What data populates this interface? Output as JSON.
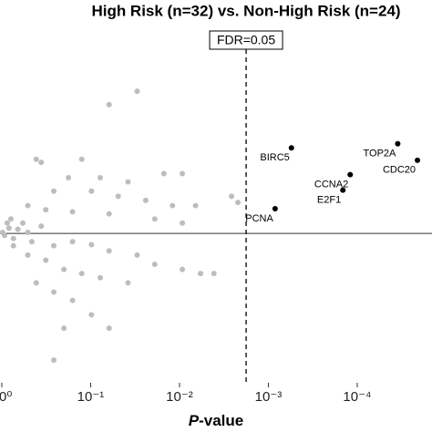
{
  "chart_data": {
    "type": "scatter",
    "title": "High Risk (n=32) vs. Non-High Risk (n=24)",
    "xlabel": "P-value",
    "xscale": "log",
    "xlim": [
      1,
      1.44e-05
    ],
    "ylim": [
      -1.45,
      2
    ],
    "xticks": [
      {
        "value": 1,
        "label": "10⁰"
      },
      {
        "value": 0.1,
        "label": "10⁻¹"
      },
      {
        "value": 0.01,
        "label": "10⁻²"
      },
      {
        "value": 0.001,
        "label": "10⁻³"
      },
      {
        "value": 0.0001,
        "label": "10⁻⁴"
      }
    ],
    "hline": 0,
    "fdr_line": {
      "value": 0.00178,
      "label": "FDR=0.05"
    },
    "points": {
      "color": "#bdbdbd",
      "x": [
        0.03,
        0.062,
        0.41,
        0.36,
        0.126,
        0.178,
        0.078,
        0.038,
        0.015,
        0.0093,
        0.26,
        0.098,
        0.049,
        0.024,
        0.012,
        0.0066,
        0.0026,
        0.0022,
        0.51,
        0.32,
        0.16,
        0.062,
        0.019,
        0.0093,
        0.83,
        0.66,
        0.93,
        0.74,
        0.51,
        0.46,
        0.36,
        0.26,
        0.16,
        0.098,
        0.062,
        0.03,
        0.019,
        0.0093,
        0.0058,
        0.0041,
        0.51,
        0.32,
        0.2,
        0.126,
        0.078,
        0.038,
        0.26,
        0.16,
        0.098,
        0.062,
        0.41,
        0.2,
        0.26,
        0.74,
        0.58,
        0.87,
        0.98,
        0.79
      ],
      "y": [
        1.38,
        1.25,
        0.72,
        0.69,
        0.72,
        0.54,
        0.54,
        0.5,
        0.58,
        0.58,
        0.41,
        0.41,
        0.36,
        0.32,
        0.27,
        0.27,
        0.36,
        0.3,
        0.27,
        0.23,
        0.21,
        0.19,
        0.14,
        0.1,
        0.05,
        0.04,
        -0.02,
        -0.05,
        0.01,
        -0.08,
        0.07,
        -0.12,
        -0.08,
        -0.11,
        -0.17,
        -0.21,
        -0.3,
        -0.35,
        -0.39,
        -0.39,
        -0.21,
        -0.26,
        -0.35,
        -0.39,
        -0.43,
        -0.48,
        -0.57,
        -0.65,
        -0.79,
        -0.92,
        -0.48,
        -0.92,
        -1.23,
        -0.12,
        0.1,
        0.1,
        0.01,
        0.14
      ]
    },
    "labeled": {
      "color": "#000000",
      "names": [
        "BIRC5",
        "TOP2A",
        "CDC20",
        "CCNA2",
        "E2F1",
        "PCNA"
      ],
      "x": [
        0.00055,
        3.5e-05,
        2.1e-05,
        0.00012,
        0.000145,
        0.00084
      ],
      "y": [
        0.83,
        0.87,
        0.71,
        0.57,
        0.42,
        0.24
      ]
    }
  }
}
